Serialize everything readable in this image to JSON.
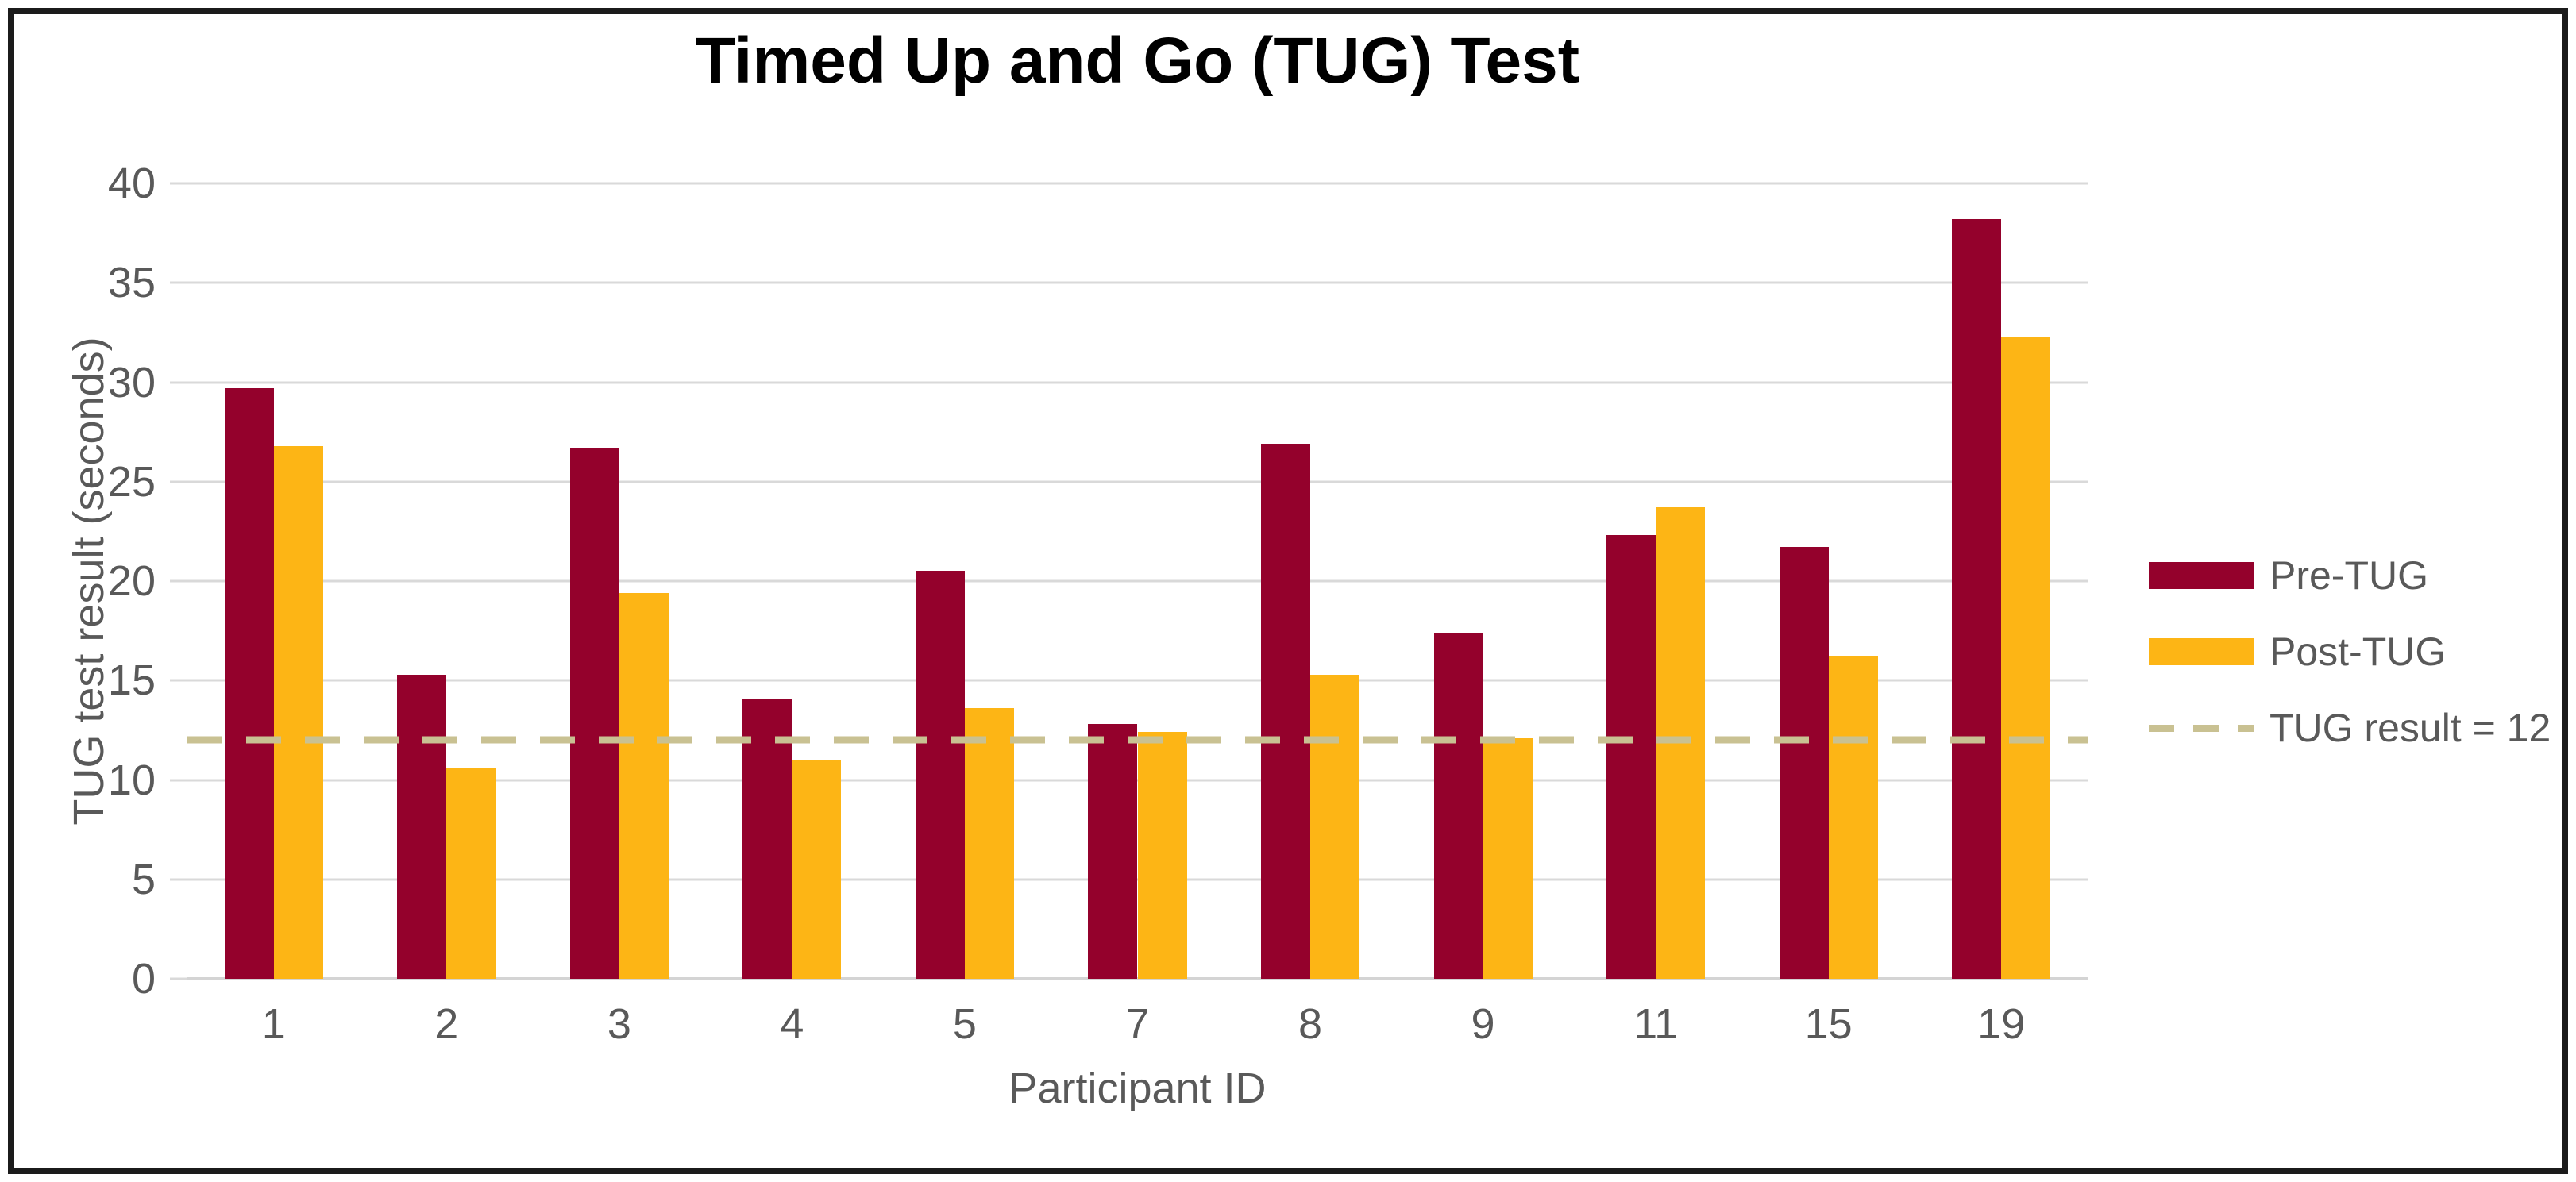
{
  "chart_data": {
    "type": "bar",
    "title": "Timed Up and Go (TUG) Test",
    "xlabel": "Participant ID",
    "ylabel": "TUG test result (seconds)",
    "ylim": [
      0,
      40
    ],
    "ytick_step": 5,
    "yticks": [
      "0",
      "5",
      "10",
      "15",
      "20",
      "25",
      "30",
      "35",
      "40"
    ],
    "grid": true,
    "legend_position": "right",
    "categories": [
      "1",
      "2",
      "3",
      "4",
      "5",
      "7",
      "8",
      "9",
      "11",
      "15",
      "19"
    ],
    "series": [
      {
        "name": "Pre-TUG",
        "color": "#94012C",
        "values": [
          29.7,
          15.3,
          26.7,
          14.1,
          20.5,
          12.8,
          26.9,
          17.4,
          22.3,
          21.7,
          38.2
        ]
      },
      {
        "name": "Post-TUG",
        "color": "#FDB515",
        "values": [
          26.8,
          10.6,
          19.4,
          11.0,
          13.6,
          12.4,
          15.3,
          12.1,
          23.7,
          16.2,
          32.3
        ]
      }
    ],
    "threshold": {
      "label": "TUG result = 12",
      "value": 12,
      "color": "#C9C192",
      "style": "dashed"
    }
  },
  "colors": {
    "grid": "#D9D9D9",
    "axis_text": "#595959",
    "title_text": "#000000",
    "frame_border": "#1b1b1b"
  }
}
